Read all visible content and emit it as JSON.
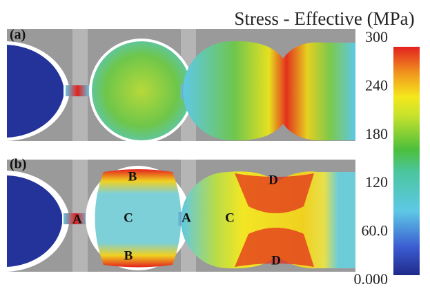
{
  "colorbar": {
    "title": "Stress - Effective (MPa)",
    "ticks": [
      "300",
      "240",
      "180",
      "120",
      "60.0",
      "0.000"
    ]
  },
  "panels": [
    {
      "label": "(a)",
      "regions": []
    },
    {
      "label": "(b)",
      "regions": [
        "B",
        "A",
        "C",
        "B",
        "A",
        "C",
        "D",
        "D"
      ]
    }
  ]
}
